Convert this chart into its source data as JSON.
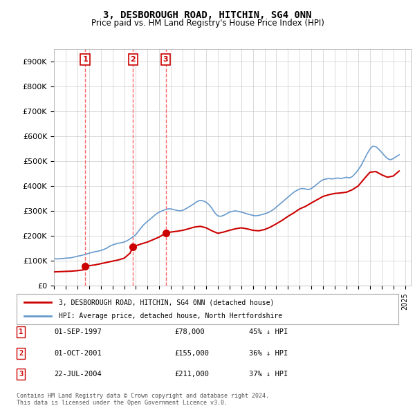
{
  "title": "3, DESBOROUGH ROAD, HITCHIN, SG4 0NN",
  "subtitle": "Price paid vs. HM Land Registry's House Price Index (HPI)",
  "ylabel": "",
  "xlim_start": 1995.0,
  "xlim_end": 2025.5,
  "ylim": [
    0,
    950000
  ],
  "yticks": [
    0,
    100000,
    200000,
    300000,
    400000,
    500000,
    600000,
    700000,
    800000,
    900000
  ],
  "ytick_labels": [
    "£0",
    "£100K",
    "£200K",
    "£300K",
    "£400K",
    "£500K",
    "£600K",
    "£700K",
    "£800K",
    "£900K"
  ],
  "purchases": [
    {
      "date_year": 1997.667,
      "price": 78000,
      "label": "1"
    },
    {
      "date_year": 2001.75,
      "price": 155000,
      "label": "2"
    },
    {
      "date_year": 2004.55,
      "price": 211000,
      "label": "3"
    }
  ],
  "purchase_color": "#cc0000",
  "hpi_color": "#6699cc",
  "legend_property_label": "3, DESBOROUGH ROAD, HITCHIN, SG4 0NN (detached house)",
  "legend_hpi_label": "HPI: Average price, detached house, North Hertfordshire",
  "table_rows": [
    {
      "num": "1",
      "date": "01-SEP-1997",
      "price": "£78,000",
      "change": "45% ↓ HPI"
    },
    {
      "num": "2",
      "date": "01-OCT-2001",
      "price": "£155,000",
      "change": "36% ↓ HPI"
    },
    {
      "num": "3",
      "date": "22-JUL-2004",
      "price": "£211,000",
      "change": "37% ↓ HPI"
    }
  ],
  "footnote": "Contains HM Land Registry data © Crown copyright and database right 2024.\nThis data is licensed under the Open Government Licence v3.0.",
  "hpi_data_x": [
    1995.0,
    1995.25,
    1995.5,
    1995.75,
    1996.0,
    1996.25,
    1996.5,
    1996.75,
    1997.0,
    1997.25,
    1997.5,
    1997.75,
    1998.0,
    1998.25,
    1998.5,
    1998.75,
    1999.0,
    1999.25,
    1999.5,
    1999.75,
    2000.0,
    2000.25,
    2000.5,
    2000.75,
    2001.0,
    2001.25,
    2001.5,
    2001.75,
    2002.0,
    2002.25,
    2002.5,
    2002.75,
    2003.0,
    2003.25,
    2003.5,
    2003.75,
    2004.0,
    2004.25,
    2004.5,
    2004.75,
    2005.0,
    2005.25,
    2005.5,
    2005.75,
    2006.0,
    2006.25,
    2006.5,
    2006.75,
    2007.0,
    2007.25,
    2007.5,
    2007.75,
    2008.0,
    2008.25,
    2008.5,
    2008.75,
    2009.0,
    2009.25,
    2009.5,
    2009.75,
    2010.0,
    2010.25,
    2010.5,
    2010.75,
    2011.0,
    2011.25,
    2011.5,
    2011.75,
    2012.0,
    2012.25,
    2012.5,
    2012.75,
    2013.0,
    2013.25,
    2013.5,
    2013.75,
    2014.0,
    2014.25,
    2014.5,
    2014.75,
    2015.0,
    2015.25,
    2015.5,
    2015.75,
    2016.0,
    2016.25,
    2016.5,
    2016.75,
    2017.0,
    2017.25,
    2017.5,
    2017.75,
    2018.0,
    2018.25,
    2018.5,
    2018.75,
    2019.0,
    2019.25,
    2019.5,
    2019.75,
    2020.0,
    2020.25,
    2020.5,
    2020.75,
    2021.0,
    2021.25,
    2021.5,
    2021.75,
    2022.0,
    2022.25,
    2022.5,
    2022.75,
    2023.0,
    2023.25,
    2023.5,
    2023.75,
    2024.0,
    2024.25,
    2024.5
  ],
  "hpi_data_y": [
    108000,
    107000,
    108000,
    109000,
    110000,
    111000,
    112000,
    115000,
    118000,
    120000,
    123000,
    126000,
    130000,
    133000,
    136000,
    138000,
    141000,
    145000,
    150000,
    158000,
    163000,
    167000,
    170000,
    172000,
    175000,
    180000,
    188000,
    195000,
    205000,
    220000,
    235000,
    248000,
    258000,
    268000,
    278000,
    288000,
    295000,
    300000,
    305000,
    308000,
    308000,
    305000,
    302000,
    300000,
    302000,
    308000,
    315000,
    322000,
    330000,
    338000,
    342000,
    340000,
    335000,
    325000,
    310000,
    292000,
    280000,
    278000,
    282000,
    288000,
    295000,
    298000,
    300000,
    298000,
    295000,
    292000,
    288000,
    285000,
    282000,
    280000,
    282000,
    285000,
    288000,
    292000,
    298000,
    305000,
    315000,
    325000,
    335000,
    345000,
    355000,
    365000,
    375000,
    382000,
    388000,
    390000,
    388000,
    385000,
    390000,
    398000,
    408000,
    418000,
    425000,
    428000,
    430000,
    428000,
    430000,
    432000,
    430000,
    432000,
    435000,
    432000,
    438000,
    450000,
    465000,
    482000,
    505000,
    528000,
    548000,
    560000,
    558000,
    548000,
    535000,
    522000,
    510000,
    505000,
    510000,
    518000,
    525000
  ],
  "property_data_x": [
    1995.0,
    1995.5,
    1996.0,
    1996.5,
    1997.0,
    1997.5,
    1997.667,
    1997.75,
    1998.0,
    1998.5,
    1999.0,
    1999.5,
    2000.0,
    2000.5,
    2001.0,
    2001.5,
    2001.75,
    2002.0,
    2002.5,
    2003.0,
    2003.5,
    2004.0,
    2004.55,
    2005.0,
    2005.5,
    2006.0,
    2006.5,
    2007.0,
    2007.5,
    2008.0,
    2008.5,
    2009.0,
    2009.5,
    2010.0,
    2010.5,
    2011.0,
    2011.5,
    2012.0,
    2012.5,
    2013.0,
    2013.5,
    2014.0,
    2014.5,
    2015.0,
    2015.5,
    2016.0,
    2016.5,
    2017.0,
    2017.5,
    2018.0,
    2018.5,
    2019.0,
    2019.5,
    2020.0,
    2020.5,
    2021.0,
    2021.5,
    2022.0,
    2022.5,
    2023.0,
    2023.5,
    2024.0,
    2024.5
  ],
  "property_data_y": [
    55000,
    56000,
    57000,
    58000,
    60000,
    63000,
    78000,
    78000,
    80000,
    83000,
    88000,
    93000,
    98000,
    103000,
    110000,
    130000,
    155000,
    160000,
    168000,
    175000,
    185000,
    195000,
    211000,
    215000,
    218000,
    222000,
    228000,
    235000,
    238000,
    232000,
    220000,
    210000,
    215000,
    222000,
    228000,
    232000,
    228000,
    222000,
    220000,
    225000,
    235000,
    248000,
    262000,
    278000,
    292000,
    308000,
    318000,
    332000,
    345000,
    358000,
    365000,
    370000,
    372000,
    375000,
    385000,
    400000,
    428000,
    455000,
    458000,
    445000,
    435000,
    440000,
    460000
  ],
  "xtick_years": [
    1995,
    1996,
    1997,
    1998,
    1999,
    2000,
    2001,
    2002,
    2003,
    2004,
    2005,
    2006,
    2007,
    2008,
    2009,
    2010,
    2011,
    2012,
    2013,
    2014,
    2015,
    2016,
    2017,
    2018,
    2019,
    2020,
    2021,
    2022,
    2023,
    2024,
    2025
  ],
  "background_color": "#ffffff",
  "grid_color": "#cccccc",
  "vline_color": "#ff6666"
}
